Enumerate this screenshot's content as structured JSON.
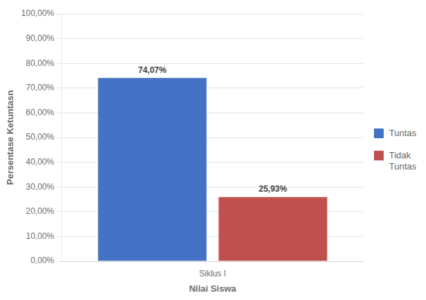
{
  "chart_data": {
    "type": "bar",
    "categories": [
      "Siklus I"
    ],
    "series": [
      {
        "name": "Tuntas",
        "color": "#4472C4",
        "values": [
          74.07
        ],
        "value_labels": [
          "74,07%"
        ]
      },
      {
        "name": "Tidak\nTuntas",
        "color": "#C0504D",
        "values": [
          25.93
        ],
        "value_labels": [
          "25,93%"
        ]
      }
    ],
    "x_label": "Nilai Siswa",
    "y_label": "Persentase Ketuntasn",
    "ylim": [
      0,
      100
    ],
    "yticks": [
      {
        "value": 0,
        "label": "0,00%"
      },
      {
        "value": 10,
        "label": "10,00%"
      },
      {
        "value": 20,
        "label": "20,00%"
      },
      {
        "value": 30,
        "label": "30,00%"
      },
      {
        "value": 40,
        "label": "40,00%"
      },
      {
        "value": 50,
        "label": "50,00%"
      },
      {
        "value": 60,
        "label": "60,00%"
      },
      {
        "value": 70,
        "label": "70,00%"
      },
      {
        "value": 80,
        "label": "80,00%"
      },
      {
        "value": 90,
        "label": "90,00%"
      },
      {
        "value": 100,
        "label": "100,00%"
      }
    ],
    "grid": true,
    "legend": "right",
    "data_labels": true
  }
}
